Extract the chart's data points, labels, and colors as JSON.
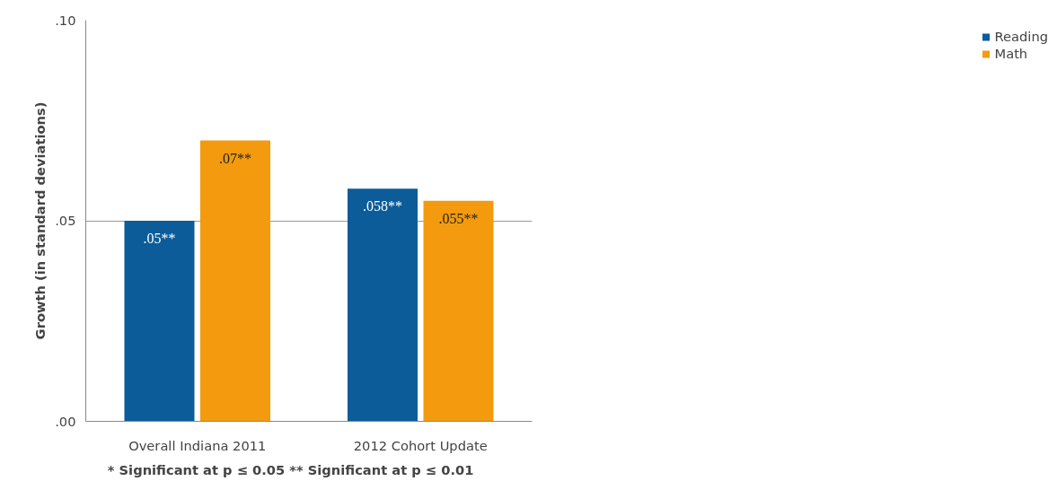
{
  "chart_data": {
    "type": "bar",
    "categories": [
      "Overall Indiana 2011",
      "2012 Cohort Update"
    ],
    "series": [
      {
        "name": "Reading",
        "color": "#0b5c99",
        "values": [
          0.05,
          0.058
        ],
        "value_labels": [
          ".05**",
          ".058**"
        ]
      },
      {
        "name": "Math",
        "color": "#f39a0e",
        "values": [
          0.07,
          0.055
        ],
        "value_labels": [
          ".07**",
          ".055**"
        ]
      }
    ],
    "ylabel": "Growth (in standard deviations)",
    "ylim": [
      0,
      0.1
    ],
    "yticks": [
      {
        "value": 0,
        "label": ".00"
      },
      {
        "value": 0.05,
        "label": ".05"
      },
      {
        "value": 0.1,
        "label": ".10"
      }
    ],
    "grid": "y",
    "legend": "right",
    "annotations": [
      "* Significant  at p ≤ 0.05       ** Significant  at p ≤ 0.01"
    ]
  }
}
